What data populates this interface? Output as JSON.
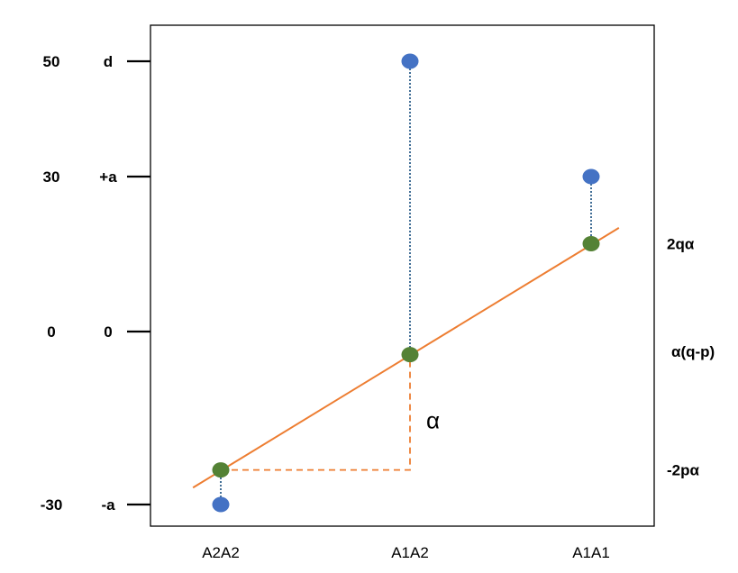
{
  "chart_data": {
    "type": "scatter",
    "title": "",
    "xlabel": "",
    "ylabel": "",
    "categories": [
      "A2A2",
      "A1A2",
      "A1A1"
    ],
    "ylim": [
      -33,
      57
    ],
    "y_ticks": [
      {
        "value": -30,
        "number_label": "-30",
        "symbol_label": "-a"
      },
      {
        "value": 0,
        "number_label": "0",
        "symbol_label": "0"
      },
      {
        "value": 30,
        "number_label": "30",
        "symbol_label": "+a"
      },
      {
        "value": 50,
        "number_label": "50",
        "symbol_label": "d"
      }
    ],
    "series": [
      {
        "values": [
          -30,
          50,
          30
        ],
        "color": "#4472C4"
      },
      {
        "values": [
          -24,
          -4,
          17
        ],
        "color": "#548235"
      }
    ],
    "regression_line": {
      "color": "#ED7D31",
      "x_extend": 0.15
    },
    "right_labels": [
      {
        "value": 17,
        "text": "2qα"
      },
      {
        "value": 0,
        "text": "α(q-p)"
      },
      {
        "value": -24,
        "text": "-2pα"
      }
    ],
    "slope_annotation": {
      "text": "α"
    },
    "colors": {
      "genotypic": "#4472C4",
      "breeding": "#548235",
      "regression": "#ED7D31",
      "deviation_line": "#2E5F8A",
      "axis": "#000000"
    }
  }
}
